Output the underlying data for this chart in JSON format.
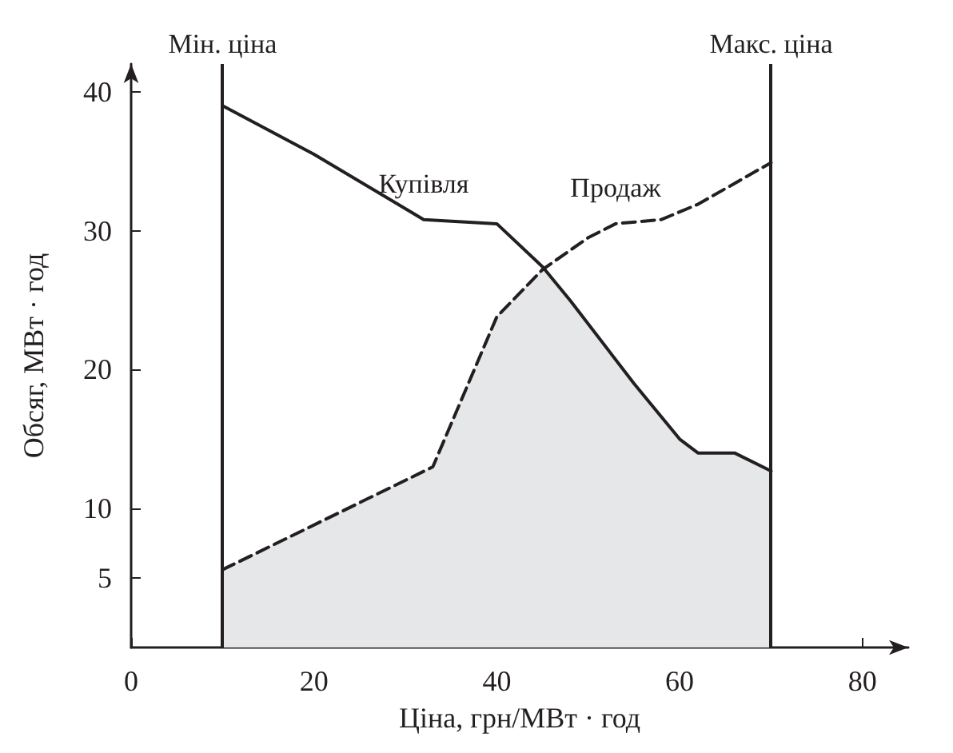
{
  "chart_data": {
    "type": "line",
    "xlabel": "Ціна, грн/МВт · год",
    "ylabel": "Обсяг, МВт · год",
    "xlim": [
      0,
      85
    ],
    "xticks": [
      0,
      20,
      40,
      60,
      80
    ],
    "ylim": [
      0,
      42
    ],
    "yticks": [
      5,
      10,
      20,
      30,
      40
    ],
    "grid": false,
    "legend": false,
    "marker": "none",
    "series": [
      {
        "type": "area",
        "color": "#e6e7e8",
        "x": [
          10,
          33,
          40,
          45,
          48,
          55,
          60,
          62,
          66,
          70
        ],
        "values": [
          5.6,
          13,
          23.8,
          27.2,
          25,
          19,
          15,
          14,
          14,
          12.7
        ]
      },
      {
        "name": "Купівля",
        "color": "#231f20",
        "line_style": "solid",
        "x": [
          10,
          20,
          32,
          40,
          45,
          48,
          55,
          60,
          62,
          66,
          70
        ],
        "values": [
          39,
          35.5,
          30.8,
          30.5,
          27.4,
          25,
          19,
          15,
          14,
          14,
          12.7
        ]
      },
      {
        "name": "Продаж",
        "color": "#231f20",
        "line_style": "dashed",
        "x": [
          10,
          33,
          40,
          45,
          50,
          53,
          58,
          62,
          70
        ],
        "values": [
          5.6,
          13,
          23.8,
          27.2,
          29.5,
          30.5,
          30.8,
          31.9,
          34.9
        ]
      }
    ],
    "ref_lines": [
      {
        "axis": "x",
        "value": 10,
        "label": "Мін. ціна"
      },
      {
        "axis": "x",
        "value": 70,
        "label": "Макс. ціна"
      }
    ]
  }
}
